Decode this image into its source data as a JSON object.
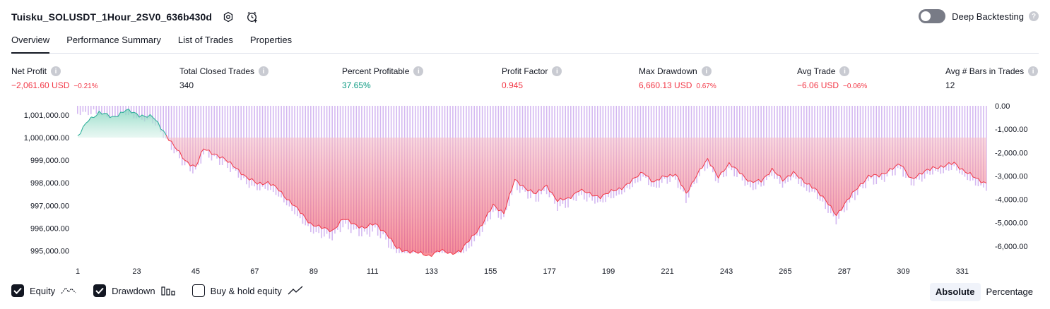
{
  "header": {
    "title": "Tuisku_SOLUSDT_1Hour_2SV0_636b430d"
  },
  "deep_backtesting": {
    "label": "Deep Backtesting",
    "enabled": false
  },
  "tabs": [
    "Overview",
    "Performance Summary",
    "List of Trades",
    "Properties"
  ],
  "metrics": {
    "net_profit": {
      "label": "Net Profit",
      "value": "−2,061.60 USD",
      "pct": "−0.21%"
    },
    "total_closed_trades": {
      "label": "Total Closed Trades",
      "value": "340"
    },
    "percent_profitable": {
      "label": "Percent Profitable",
      "value": "37.65%"
    },
    "profit_factor": {
      "label": "Profit Factor",
      "value": "0.945"
    },
    "max_drawdown": {
      "label": "Max Drawdown",
      "value": "6,660.13 USD",
      "pct": "0.67%"
    },
    "avg_trade": {
      "label": "Avg Trade",
      "value": "−6.06 USD",
      "pct": "−0.06%"
    },
    "avg_bars": {
      "label": "Avg # Bars in Trades",
      "value": "12"
    }
  },
  "chart_data": {
    "type": "area",
    "x_ticks": [
      "1",
      "23",
      "45",
      "67",
      "89",
      "111",
      "133",
      "155",
      "177",
      "199",
      "221",
      "243",
      "265",
      "287",
      "309",
      "331"
    ],
    "y_left_ticks": [
      "1,001,000.00",
      "1,000,000.00",
      "999,000.00",
      "998,000.00",
      "997,000.00",
      "996,000.00",
      "995,000.00"
    ],
    "y_right_ticks": [
      "0.00",
      "-1,000.00",
      "-2,000.00",
      "-3,000.00",
      "-4,000.00",
      "-5,000.00",
      "-6,000.00"
    ],
    "y_left_range": [
      994800,
      1001400
    ],
    "y_right_range": [
      -6400,
      0
    ],
    "x_range": [
      1,
      340
    ],
    "series": [
      {
        "name": "Equity",
        "x": [
          1,
          5,
          9,
          14,
          19,
          24,
          29,
          33,
          37,
          41,
          45,
          48,
          52,
          56,
          60,
          64,
          68,
          72,
          76,
          80,
          84,
          88,
          92,
          96,
          100,
          104,
          108,
          112,
          116,
          120,
          124,
          128,
          132,
          136,
          140,
          144,
          148,
          152,
          156,
          160,
          164,
          168,
          172,
          176,
          180,
          184,
          188,
          192,
          196,
          200,
          204,
          208,
          212,
          216,
          220,
          224,
          228,
          232,
          236,
          240,
          244,
          248,
          252,
          256,
          260,
          264,
          268,
          272,
          276,
          280,
          284,
          288,
          292,
          296,
          300,
          304,
          308,
          312,
          316,
          320,
          324,
          328,
          332,
          336,
          340
        ],
        "values": [
          1000000,
          1000800,
          1001100,
          1000900,
          1001200,
          1001000,
          1000900,
          1000300,
          999600,
          999000,
          998700,
          999500,
          999300,
          999000,
          998700,
          998200,
          998000,
          998000,
          997700,
          997200,
          996700,
          996200,
          996000,
          995900,
          996400,
          996200,
          996000,
          996200,
          995800,
          995100,
          995000,
          994900,
          994800,
          995000,
          994900,
          995000,
          995600,
          996200,
          997000,
          996700,
          998100,
          997800,
          997500,
          997900,
          997200,
          997300,
          997700,
          997500,
          997400,
          997600,
          997800,
          998100,
          998500,
          998000,
          998300,
          998400,
          997500,
          998400,
          999000,
          998300,
          998800,
          998500,
          998000,
          998100,
          998600,
          998100,
          998500,
          998000,
          997800,
          997200,
          996600,
          997200,
          997800,
          998300,
          998300,
          998600,
          998800,
          998200,
          998400,
          998700,
          998700,
          998900,
          998500,
          998200,
          998000
        ]
      },
      {
        "name": "Drawdown",
        "values_note": ""
      }
    ],
    "legend": [
      "Equity",
      "Drawdown",
      "Buy & hold equity"
    ],
    "legend_placement": "bottom-left"
  },
  "legend": {
    "equity": {
      "label": "Equity",
      "checked": true
    },
    "drawdown": {
      "label": "Drawdown",
      "checked": true
    },
    "buy_hold": {
      "label": "Buy & hold equity",
      "checked": false
    }
  },
  "view_toggle": {
    "absolute": "Absolute",
    "percentage": "Percentage",
    "selected": "Absolute"
  },
  "colors": {
    "accent": "#131722",
    "negative": "#f23645",
    "positive": "#089981",
    "equity_line": "#f23645",
    "equity_up_fill": "#b8e6d8",
    "drawdown_bars": "#c9a6ee"
  }
}
